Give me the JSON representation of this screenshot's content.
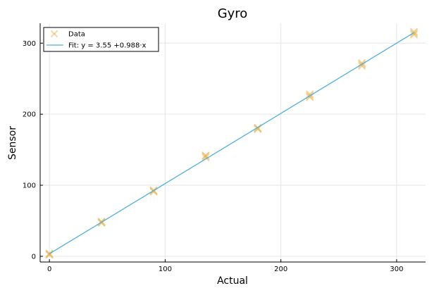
{
  "chart_data": {
    "type": "scatter",
    "title": "Gyro",
    "xlabel": "Actual",
    "ylabel": "Sensor",
    "xlim": [
      -8,
      325
    ],
    "ylim": [
      -8,
      328
    ],
    "xticks": [
      0,
      100,
      200,
      300
    ],
    "yticks": [
      0,
      100,
      200,
      300
    ],
    "grid": true,
    "legend_position": "top-left",
    "series": [
      {
        "name": "Data",
        "kind": "scatter",
        "marker": "x",
        "color": "#E8B24A",
        "points": [
          [
            0,
            2
          ],
          [
            0,
            4
          ],
          [
            0,
            3
          ],
          [
            45,
            47
          ],
          [
            45,
            49
          ],
          [
            45,
            48
          ],
          [
            90,
            91
          ],
          [
            90,
            93
          ],
          [
            90,
            92
          ],
          [
            135,
            139
          ],
          [
            135,
            142
          ],
          [
            135,
            141
          ],
          [
            180,
            179
          ],
          [
            180,
            181
          ],
          [
            180,
            180
          ],
          [
            225,
            224
          ],
          [
            225,
            228
          ],
          [
            225,
            226
          ],
          [
            270,
            268
          ],
          [
            270,
            272
          ],
          [
            270,
            270
          ],
          [
            315,
            312
          ],
          [
            315,
            316
          ],
          [
            315,
            314
          ]
        ]
      },
      {
        "name": "Fit: y = 3.55 +0.988·x",
        "kind": "line",
        "color": "#4DB0DE",
        "intercept": 3.55,
        "slope": 0.988,
        "x_range": [
          0,
          315
        ]
      }
    ]
  }
}
